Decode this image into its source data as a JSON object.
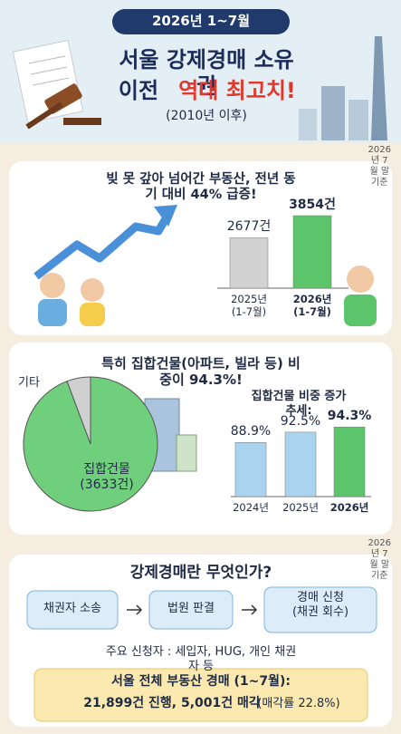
{
  "header": {
    "badge": "2026년 1~7월",
    "title_line1": "서울 강제경매 소유권",
    "title_line2_a": "이전",
    "title_line2_b": "역대 최고치!",
    "subtitle": "(2010년 이후)"
  },
  "note_top": "2026년 7월 말 기준",
  "section1": {
    "title": "빚 못 갚아 넘어간 부동산, 전년 동기 대비 44% 급증!"
  },
  "section2": {
    "title": "특히 집합건물(아파트, 빌라 등) 비중이 94.3%!",
    "chart_title": "집합건물 비중 증가 추세:"
  },
  "note_bottom": "2026년 7월 말 기준",
  "section3": {
    "title": "강제경매란 무엇인가?",
    "steps": [
      "채권자 소송",
      "법원 판결",
      "경매 신청\n(채권 회수)"
    ],
    "applicants": "주요 신청자 : 세입자, HUG, 개인 채권자 등",
    "summary_line1": "서울 전체 부동산 경매 (1~7월):",
    "summary_line2": "21,899건 진행, 5,001건 매각",
    "summary_rate": "(매각률 22.8%)"
  },
  "chart_data": [
    {
      "type": "bar",
      "categories": [
        "2025년\n(1-7월)",
        "2026년\n(1-7월)"
      ],
      "values": [
        2677,
        3854
      ],
      "value_labels": [
        "2677건",
        "3854건"
      ],
      "colors": [
        "#d2d2d2",
        "#5cc46a"
      ],
      "ylim": [
        0,
        4000
      ]
    },
    {
      "type": "pie",
      "categories": [
        "집합건물\n(3633건)",
        "기타"
      ],
      "values": [
        94.3,
        5.7
      ],
      "colors": [
        "#6fcf7c",
        "#d0d0d0"
      ]
    },
    {
      "type": "bar",
      "categories": [
        "2024년",
        "2025년",
        "2026년"
      ],
      "values": [
        88.9,
        92.5,
        94.3
      ],
      "value_labels": [
        "88.9%",
        "92.5%",
        "94.3%"
      ],
      "colors": [
        "#a9d3ee",
        "#a9d3ee",
        "#5cc46a"
      ],
      "ylim": [
        70,
        95
      ]
    }
  ]
}
